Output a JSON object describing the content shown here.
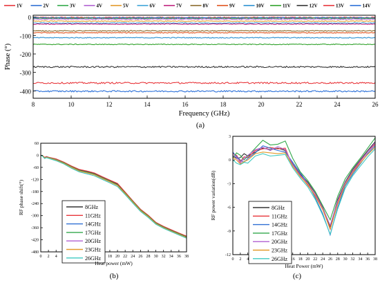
{
  "chart_data": [
    {
      "panel_label": "(a)",
      "type": "line",
      "xlabel": "Frequency (GHz)",
      "ylabel": "Phase (°)",
      "xlim": [
        8,
        26
      ],
      "ylim": [
        -440,
        10
      ],
      "x_ticks": [
        8,
        10,
        12,
        14,
        16,
        18,
        20,
        22,
        24,
        26
      ],
      "y_ticks": [
        0,
        -100,
        -200,
        -300,
        -400
      ],
      "legend_placement": "top",
      "series": [
        {
          "name": "1V",
          "color": "#e8353a",
          "value": -2
        },
        {
          "name": "2V",
          "color": "#2f6fd4",
          "value": -4
        },
        {
          "name": "3V",
          "color": "#31a84a",
          "value": -7
        },
        {
          "name": "4V",
          "color": "#b05fd0",
          "value": -11
        },
        {
          "name": "5V",
          "color": "#e39a2a",
          "value": -22
        },
        {
          "name": "6V",
          "color": "#3ea3d8",
          "value": -32
        },
        {
          "name": "7V",
          "color": "#c0227d",
          "value": -38
        },
        {
          "name": "8V",
          "color": "#8a6b2c",
          "value": -75
        },
        {
          "name": "9V",
          "color": "#e0531d",
          "value": -85
        },
        {
          "name": "10V",
          "color": "#2a8fd0",
          "value": -112
        },
        {
          "name": "11V",
          "color": "#2fa12a",
          "value": -148
        },
        {
          "name": "12V",
          "color": "#333333",
          "value": -270
        },
        {
          "name": "13V",
          "color": "#e8353a",
          "value": -357
        },
        {
          "name": "14V",
          "color": "#2a6fd8",
          "value": -402
        }
      ]
    },
    {
      "panel_label": "(b)",
      "type": "line",
      "xlabel": "Heat power (mW)",
      "ylabel": "RF phase shift(°)",
      "xlim": [
        0,
        38
      ],
      "ylim": [
        -480,
        60
      ],
      "x_ticks": [
        0,
        2,
        4,
        6,
        8,
        10,
        12,
        14,
        16,
        18,
        20,
        22,
        24,
        26,
        28,
        30,
        32,
        34,
        36,
        38
      ],
      "y_ticks": [
        60,
        0,
        -60,
        -120,
        -180,
        -240,
        -300,
        -360,
        -420,
        -480
      ],
      "x": [
        0,
        0.5,
        1,
        1.5,
        2,
        4,
        6,
        8,
        10,
        12,
        14,
        16,
        18,
        20,
        22,
        24,
        26,
        28,
        30,
        32,
        34,
        36,
        38
      ],
      "legend_placement": "center-left",
      "series": [
        {
          "name": "8GHz",
          "color": "#333333",
          "values": [
            0,
            -3,
            -12,
            -8,
            -10,
            -20,
            -35,
            -55,
            -72,
            -80,
            -90,
            -108,
            -125,
            -143,
            -185,
            -228,
            -270,
            -300,
            -335,
            -355,
            -372,
            -388,
            -404
          ]
        },
        {
          "name": "11GHz",
          "color": "#e8353a",
          "values": [
            0,
            -2,
            -10,
            -6,
            -9,
            -18,
            -34,
            -53,
            -70,
            -78,
            -88,
            -106,
            -123,
            -140,
            -183,
            -226,
            -268,
            -298,
            -333,
            -353,
            -370,
            -386,
            -402
          ]
        },
        {
          "name": "14GHz",
          "color": "#2f6fd4",
          "values": [
            0,
            -4,
            -14,
            -9,
            -12,
            -22,
            -38,
            -58,
            -76,
            -84,
            -95,
            -113,
            -130,
            -148,
            -190,
            -232,
            -274,
            -304,
            -339,
            -359,
            -376,
            -392,
            -408
          ]
        },
        {
          "name": "17GHz",
          "color": "#31a84a",
          "values": [
            0,
            -3,
            -13,
            -9,
            -11,
            -22,
            -37,
            -57,
            -75,
            -84,
            -94,
            -112,
            -129,
            -147,
            -188,
            -230,
            -272,
            -302,
            -337,
            -357,
            -374,
            -390,
            -406
          ]
        },
        {
          "name": "20GHz",
          "color": "#b05fd0",
          "values": [
            0,
            -5,
            -15,
            -10,
            -13,
            -24,
            -40,
            -60,
            -78,
            -87,
            -97,
            -115,
            -132,
            -150,
            -192,
            -234,
            -276,
            -306,
            -340,
            -360,
            -377,
            -393,
            -409
          ]
        },
        {
          "name": "23GHz",
          "color": "#e39a2a",
          "values": [
            0,
            -4,
            -14,
            -10,
            -13,
            -24,
            -40,
            -60,
            -78,
            -87,
            -97,
            -115,
            -132,
            -150,
            -191,
            -233,
            -275,
            -305,
            -340,
            -360,
            -377,
            -393,
            -409
          ]
        },
        {
          "name": "26GHz",
          "color": "#3ec9c0",
          "values": [
            0,
            -6,
            -16,
            -12,
            -15,
            -27,
            -43,
            -64,
            -82,
            -92,
            -102,
            -120,
            -137,
            -156,
            -196,
            -238,
            -279,
            -309,
            -343,
            -363,
            -380,
            -396,
            -412
          ]
        }
      ]
    },
    {
      "panel_label": "(c)",
      "type": "line",
      "xlabel": "Heat Power (mW)",
      "ylabel": "RF power variation(dB)",
      "xlim": [
        0,
        38
      ],
      "ylim": [
        -12,
        3
      ],
      "x_ticks": [
        0,
        2,
        4,
        6,
        8,
        10,
        12,
        14,
        16,
        18,
        20,
        22,
        24,
        26,
        28,
        30,
        32,
        34,
        36,
        38
      ],
      "y_ticks": [
        3,
        0,
        -3,
        -6,
        -9,
        -12
      ],
      "x": [
        0,
        1,
        2,
        3,
        4,
        6,
        8,
        10,
        12,
        14,
        16,
        18,
        20,
        22,
        24,
        26,
        28,
        30,
        32,
        34,
        36,
        38
      ],
      "legend_placement": "center-left",
      "series": [
        {
          "name": "8GHz",
          "color": "#333333",
          "values": [
            0.5,
            0.2,
            0.3,
            0.8,
            0.5,
            1.0,
            1.5,
            1.3,
            1.5,
            1.2,
            -0.5,
            -1.8,
            -2.8,
            -4.2,
            -6.0,
            -8.5,
            -5.0,
            -2.8,
            -1.2,
            0.0,
            1.2,
            2.3
          ]
        },
        {
          "name": "11GHz",
          "color": "#e8353a",
          "values": [
            0.8,
            0.6,
            -0.2,
            0.4,
            0.3,
            1.2,
            1.4,
            1.6,
            1.4,
            1.5,
            -0.8,
            -2.0,
            -3.2,
            -4.5,
            -6.2,
            -8.8,
            -5.5,
            -3.0,
            -1.5,
            -0.2,
            1.0,
            2.0
          ]
        },
        {
          "name": "14GHz",
          "color": "#2f6fd4",
          "values": [
            1.0,
            0.4,
            0.0,
            -0.3,
            0.2,
            0.9,
            1.8,
            1.5,
            1.2,
            1.0,
            -0.3,
            -1.6,
            -3.0,
            -4.8,
            -6.8,
            -9.5,
            -6.0,
            -3.3,
            -1.8,
            -0.5,
            0.8,
            1.8
          ]
        },
        {
          "name": "17GHz",
          "color": "#31a84a",
          "values": [
            0.2,
            0.9,
            0.6,
            0.0,
            0.5,
            1.5,
            2.5,
            1.9,
            2.0,
            2.4,
            0.2,
            -1.5,
            -2.6,
            -4.0,
            -5.8,
            -7.6,
            -4.6,
            -2.4,
            -1.0,
            0.2,
            1.5,
            2.8
          ]
        },
        {
          "name": "20GHz",
          "color": "#b05fd0",
          "values": [
            0.6,
            0.3,
            -0.4,
            0.2,
            0.6,
            1.3,
            1.6,
            1.2,
            1.7,
            1.3,
            -0.6,
            -1.9,
            -3.0,
            -4.3,
            -6.1,
            -8.3,
            -5.2,
            -2.9,
            -1.4,
            -0.1,
            1.0,
            2.2
          ]
        },
        {
          "name": "23GHz",
          "color": "#e39a2a",
          "values": [
            0.3,
            0.0,
            -0.5,
            -0.2,
            0.0,
            0.8,
            1.0,
            0.9,
            0.8,
            0.9,
            -0.8,
            -2.1,
            -3.1,
            -4.6,
            -6.3,
            -8.7,
            -5.6,
            -3.1,
            -1.6,
            -0.4,
            0.7,
            1.6
          ]
        },
        {
          "name": "26GHz",
          "color": "#3ec9c0",
          "values": [
            0.0,
            -0.4,
            -0.6,
            -0.3,
            -0.4,
            0.5,
            0.8,
            0.5,
            0.6,
            0.7,
            -1.0,
            -2.3,
            -3.4,
            -5.0,
            -7.0,
            -9.4,
            -6.2,
            -3.6,
            -2.0,
            -0.8,
            0.4,
            1.4
          ]
        }
      ]
    }
  ]
}
